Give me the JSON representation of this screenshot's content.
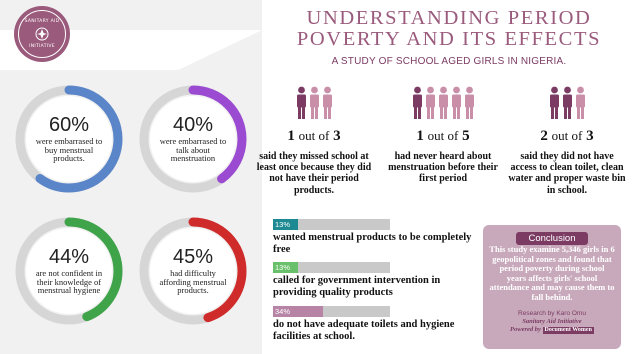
{
  "logo": {
    "text_top": "SANITARY AID",
    "text_bottom": "INITIATIVE"
  },
  "header": {
    "title_line1": "UNDERSTANDING PERIOD",
    "title_line2": "POVERTY AND ITS EFFECTS",
    "subtitle": "A STUDY OF SCHOOL AGED GIRLS IN NIGERIA."
  },
  "rings": [
    {
      "pct": "60%",
      "text": "were embarrased to buy menstrual products.",
      "value": 0.6,
      "color": "#5a86c9"
    },
    {
      "pct": "40%",
      "text": "were embarrased to talk about menstruation",
      "value": 0.4,
      "color": "#9a4bd1"
    },
    {
      "pct": "44%",
      "text": "are not confident in their knowledge of menstrual hygiene",
      "value": 0.44,
      "color": "#3fa34a"
    },
    {
      "pct": "45%",
      "text": "had difficulty affording menstrual products.",
      "value": 0.45,
      "color": "#d02b2b"
    }
  ],
  "stats": [
    {
      "ratio_num": "1",
      "ratio_mid": "out of",
      "ratio_den": "3",
      "people_total": 3,
      "people_highlight": 1,
      "text": "said they missed school at least once because they did not have their period products."
    },
    {
      "ratio_num": "1",
      "ratio_mid": "out of",
      "ratio_den": "5",
      "people_total": 5,
      "people_highlight": 1,
      "text": "had never heard about menstruation before their first period"
    },
    {
      "ratio_num": "2",
      "ratio_mid": "out of",
      "ratio_den": "3",
      "people_total": 3,
      "people_highlight": 2,
      "text": "said they did not have access to clean toilet, clean water and proper waste bin in school."
    }
  ],
  "bars": [
    {
      "pct": "13%",
      "value": 0.13,
      "color": "#1d8a93",
      "text": "wanted menstrual products to be completely free"
    },
    {
      "pct": "13%",
      "value": 0.13,
      "color": "#69c06a",
      "text": "called for government intervention in providing quality products"
    },
    {
      "pct": "34%",
      "value": 0.34,
      "color": "#b884a6",
      "text": "do not have adequate toilets and hygiene facilities at school."
    }
  ],
  "conclusion": {
    "label": "Conclusion",
    "body": "This study examine 5,346 girls in 6 geopolitical zones and found that period poverty during school years affects girls' school attendance and may cause them to fall behind.",
    "credit": "Research by Karo Omu",
    "org": "Sanitary Aid Initiative",
    "powered": "Powered by",
    "powered_badge": "Document Women"
  },
  "colors": {
    "accent": "#9a5a7c",
    "dark_accent": "#7b3b63",
    "person_highlight": "#7b3b63",
    "person_muted": "#c98fa9",
    "ring_track": "#d6d6d6"
  }
}
